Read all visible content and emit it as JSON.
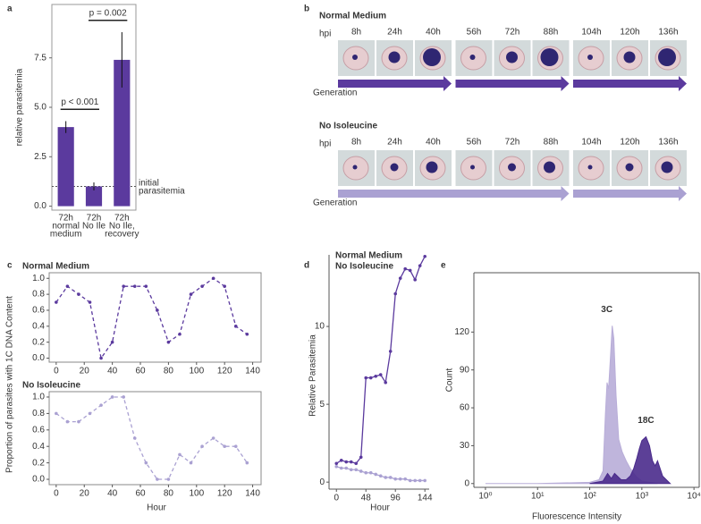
{
  "chart_data": [
    {
      "panel": "a",
      "type": "bar",
      "categories": [
        [
          "72h",
          "normal",
          "medium"
        ],
        [
          "72h",
          "No Ile"
        ],
        [
          "72h",
          "No Ile,",
          "recovery"
        ]
      ],
      "values": [
        4.0,
        1.0,
        7.4
      ],
      "errors": [
        0.3,
        0.2,
        1.4
      ],
      "color": "#5b3a9e",
      "ylabel": "relative parasitemia",
      "ylim": [
        -0.2,
        10.2
      ],
      "yticks": [
        {
          "value": 0,
          "label": "0.0"
        },
        2.5,
        {
          "value": 5,
          "label": "5.0"
        },
        7.5
      ],
      "reference_line": {
        "value": 1,
        "label": "initial parasitemia"
      },
      "annotations": [
        "p < 0.001",
        "p = 0.002"
      ]
    },
    {
      "panel": "b",
      "type": "micrographs",
      "rows": [
        {
          "title": "Normal Medium",
          "row_label": "hpi",
          "times": [
            "8h",
            "24h",
            "40h",
            "56h",
            "72h",
            "88h",
            "104h",
            "120h",
            "136h"
          ],
          "arrow_label": "Generation",
          "arrow_color": "#5b3a9e",
          "arrows": [
            3,
            3,
            3
          ]
        },
        {
          "title": "No Isoleucine",
          "row_label": "hpi",
          "times": [
            "8h",
            "24h",
            "40h",
            "56h",
            "72h",
            "88h",
            "104h",
            "120h",
            "136h"
          ],
          "arrow_label": "Generation",
          "arrow_color": "#aaa1d2",
          "arrows": [
            6,
            3
          ]
        }
      ]
    },
    {
      "panel": "c",
      "type": "line",
      "title": "Normal Medium",
      "line_style": "dashed",
      "ylabel": "Proportion of parasites with 1C DNA Content",
      "x": [
        0,
        8,
        16,
        24,
        32,
        40,
        48,
        56,
        64,
        72,
        80,
        88,
        96,
        104,
        112,
        120,
        128,
        136
      ],
      "series": [
        {
          "color": "#5b3a9e",
          "values": [
            0.7,
            0.9,
            0.8,
            0.7,
            0.0,
            0.2,
            0.9,
            0.9,
            0.9,
            0.6,
            0.2,
            0.3,
            0.8,
            0.9,
            1.0,
            0.9,
            0.4,
            0.3
          ]
        }
      ],
      "xlim": [
        -5,
        146
      ],
      "xticks": [
        0,
        20,
        40,
        60,
        80,
        100,
        120,
        140
      ],
      "ylim": [
        -0.05,
        1.07
      ],
      "yticks": [
        {
          "value": 0,
          "label": "0.0"
        },
        0.2,
        0.4,
        0.6,
        0.8,
        {
          "value": 1,
          "label": "1.0"
        }
      ]
    },
    {
      "type": "line",
      "title": "No Isoleucine",
      "line_style": "dashed",
      "xlabel": "Hour",
      "x": [
        0,
        8,
        16,
        24,
        32,
        40,
        48,
        56,
        64,
        72,
        80,
        88,
        96,
        104,
        112,
        120,
        128,
        136
      ],
      "series": [
        {
          "color": "#aaa1d2",
          "values": [
            0.8,
            0.7,
            0.7,
            0.8,
            0.9,
            1.0,
            1.0,
            0.5,
            0.2,
            0.0,
            0.0,
            0.3,
            0.2,
            0.4,
            0.5,
            0.4,
            0.4,
            0.2
          ]
        }
      ],
      "xlim": [
        -5,
        146
      ],
      "xticks": [
        0,
        20,
        40,
        60,
        80,
        100,
        120,
        140
      ],
      "ylim": [
        -0.065,
        1.065
      ],
      "yticks": [
        {
          "value": 0,
          "label": "0.0"
        },
        0.2,
        0.4,
        0.6,
        0.8,
        {
          "value": 1,
          "label": "1.0"
        }
      ]
    },
    {
      "panel": "d",
      "type": "line",
      "line_style": "solid",
      "xlabel": "Hour",
      "ylabel": "Relative Parasitemia",
      "legend": "top-left",
      "x": [
        0,
        8,
        16,
        24,
        32,
        40,
        48,
        56,
        64,
        72,
        80,
        88,
        96,
        104,
        112,
        120,
        128,
        136,
        144
      ],
      "series": [
        {
          "name": "Normal Medium",
          "color": "#5b3a9e",
          "values": [
            1.2,
            1.4,
            1.3,
            1.3,
            1.2,
            1.6,
            6.7,
            6.7,
            6.8,
            6.9,
            6.4,
            8.4,
            12.1,
            13.1,
            13.7,
            13.6,
            13.0,
            13.9,
            14.5
          ]
        },
        {
          "name": "No Isoleucine",
          "color": "#aaa1d2",
          "values": [
            1.0,
            0.9,
            0.9,
            0.8,
            0.8,
            0.7,
            0.6,
            0.6,
            0.5,
            0.4,
            0.3,
            0.3,
            0.2,
            0.2,
            0.2,
            0.1,
            0.1,
            0.1,
            0.1
          ]
        }
      ],
      "xlim": [
        -12,
        151
      ],
      "xticks": [
        0,
        48,
        96,
        144
      ],
      "ylim": [
        -0.45,
        14.6
      ],
      "yticks": [
        0,
        5,
        10
      ]
    },
    {
      "panel": "e",
      "type": "area",
      "xscale": "log",
      "xlabel": "Fluorescence Intensity",
      "ylabel": "Count",
      "series": [
        {
          "name": "3C",
          "color": "#b8add8",
          "x": [
            1,
            10,
            100,
            150,
            180,
            200,
            215,
            230,
            250,
            270,
            290,
            320,
            360,
            420,
            500,
            600,
            700,
            800,
            1000,
            2000
          ],
          "values": [
            0,
            0,
            1,
            3,
            10,
            55,
            80,
            75,
            100,
            125,
            115,
            70,
            35,
            25,
            18,
            12,
            8,
            5,
            2,
            0
          ]
        },
        {
          "name": "18C",
          "color": "#4a2b8c",
          "x": [
            100,
            180,
            220,
            260,
            300,
            400,
            500,
            600,
            700,
            800,
            900,
            1000,
            1200,
            1400,
            1600,
            1800,
            2000,
            2500,
            3500
          ],
          "values": [
            0,
            2,
            8,
            4,
            8,
            3,
            3,
            6,
            12,
            20,
            28,
            34,
            37,
            30,
            18,
            14,
            18,
            6,
            0
          ]
        }
      ],
      "xlim": [
        0.6,
        12600
      ],
      "xticks": [
        {
          "value": 1,
          "label": "10⁰"
        },
        {
          "value": 10,
          "label": "10¹"
        },
        {
          "value": 100,
          "label": "10²"
        },
        {
          "value": 1000,
          "label": "10³"
        },
        {
          "value": 10000,
          "label": "10⁴"
        }
      ],
      "ylim": [
        -3,
        167
      ],
      "yticks": [
        0,
        30,
        60,
        90,
        120
      ]
    }
  ]
}
